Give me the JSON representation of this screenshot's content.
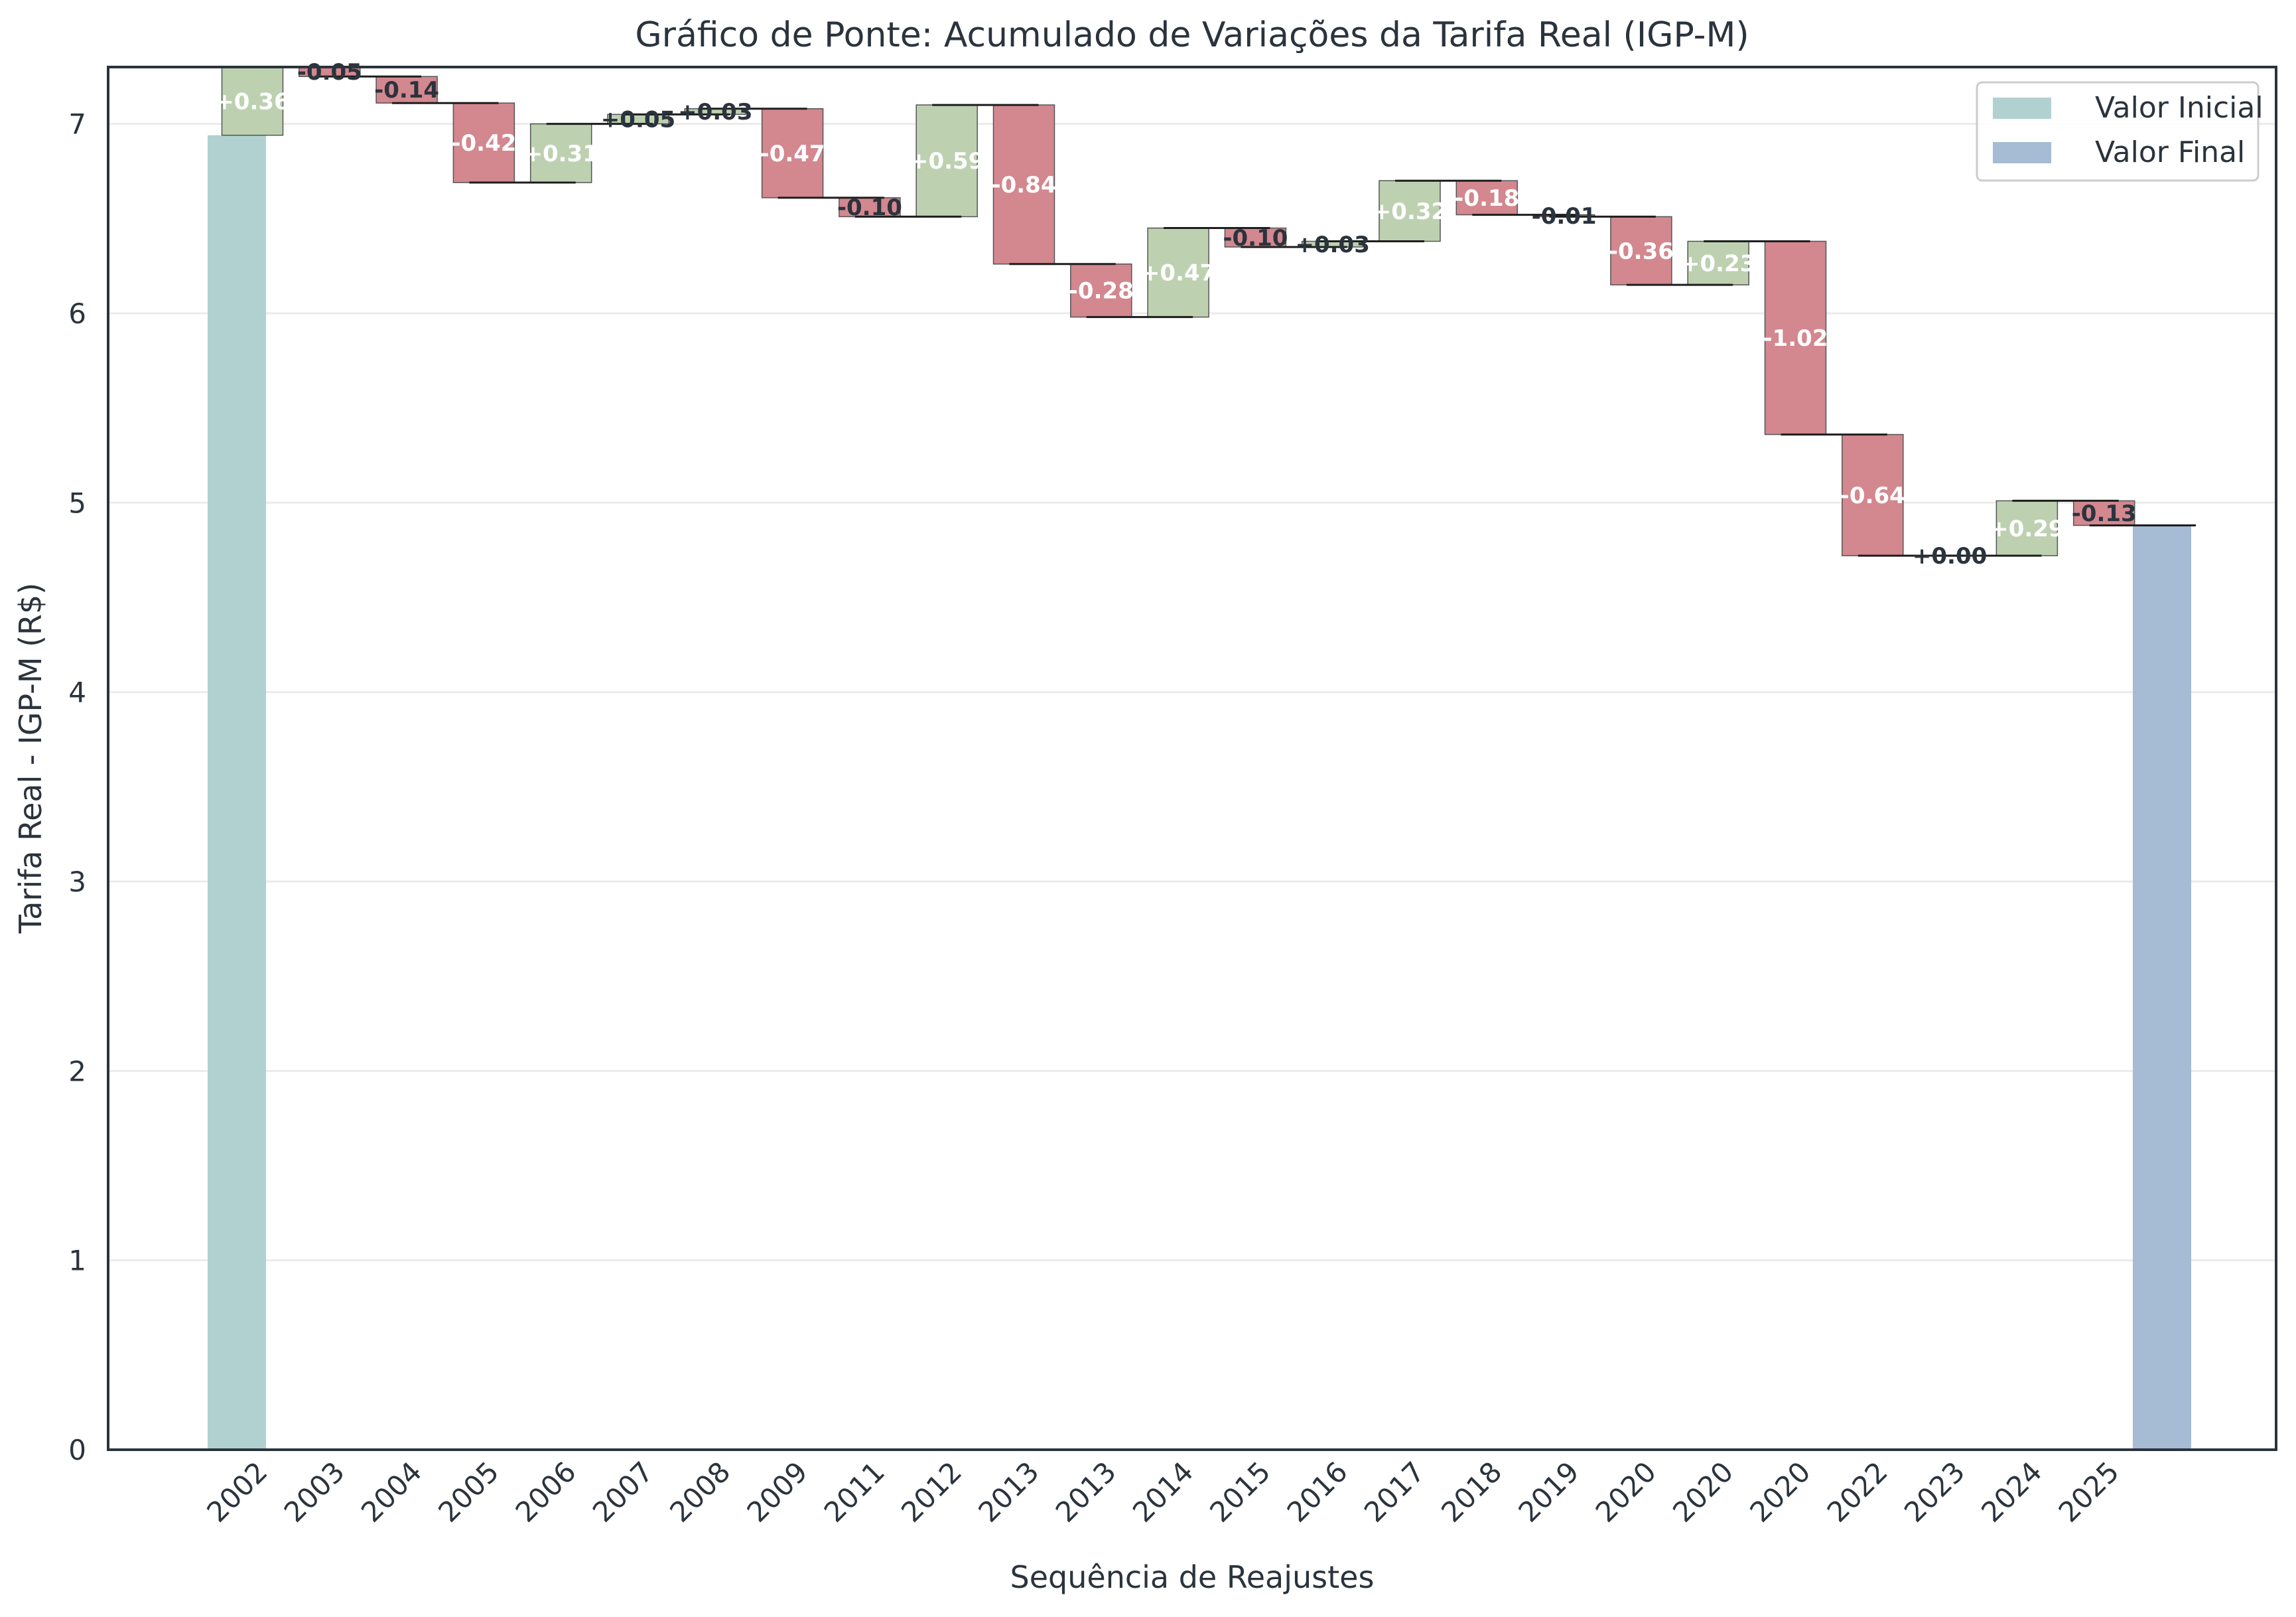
{
  "chart_data": {
    "type": "bar",
    "subtype": "waterfall",
    "title": "Gráfico de Ponte: Acumulado de Variações da Tarifa Real (IGP-M)",
    "xlabel": "Sequência de Reajustes",
    "ylabel": "Tarifa Real - IGP-M (R$)",
    "ylim": [
      0,
      7.3
    ],
    "yticks": [
      0,
      1,
      2,
      3,
      4,
      5,
      6,
      7
    ],
    "grid": "horizontal",
    "legend_position": "top-right",
    "legend": [
      {
        "label": "Valor Inicial",
        "color": "#b1d1d1"
      },
      {
        "label": "Valor Final",
        "color": "#a6bbd4"
      }
    ],
    "colors": {
      "initial": "#b1d1d1",
      "final": "#a6bbd4",
      "increase": "#bdd1b1",
      "decrease": "#d3878f",
      "connector": "#1e1e1e",
      "axis": "#2b333d",
      "grid": "#ebebeb",
      "text": "#2b333d"
    },
    "initial": {
      "x": "2002",
      "value": 6.94
    },
    "final": {
      "x": "2025",
      "value": 4.88
    },
    "categories": [
      "2002",
      "2003",
      "2004",
      "2005",
      "2006",
      "2007",
      "2008",
      "2009",
      "2011",
      "2012",
      "2013",
      "2013",
      "2014",
      "2015",
      "2016",
      "2017",
      "2018",
      "2019",
      "2020",
      "2020",
      "2020",
      "2022",
      "2023",
      "2024",
      "2025"
    ],
    "changes": [
      {
        "value": 0.36,
        "label": "+0.36"
      },
      {
        "value": -0.05,
        "label": "-0.05"
      },
      {
        "value": -0.14,
        "label": "-0.14"
      },
      {
        "value": -0.42,
        "label": "-0.42"
      },
      {
        "value": 0.31,
        "label": "+0.31"
      },
      {
        "value": 0.05,
        "label": "+0.05"
      },
      {
        "value": 0.03,
        "label": "+0.03"
      },
      {
        "value": -0.47,
        "label": "-0.47"
      },
      {
        "value": -0.1,
        "label": "-0.10"
      },
      {
        "value": 0.59,
        "label": "+0.59"
      },
      {
        "value": -0.84,
        "label": "-0.84"
      },
      {
        "value": -0.28,
        "label": "-0.28"
      },
      {
        "value": 0.47,
        "label": "+0.47"
      },
      {
        "value": -0.1,
        "label": "-0.10"
      },
      {
        "value": 0.03,
        "label": "+0.03"
      },
      {
        "value": 0.32,
        "label": "+0.32"
      },
      {
        "value": -0.18,
        "label": "-0.18"
      },
      {
        "value": -0.01,
        "label": "-0.01"
      },
      {
        "value": -0.36,
        "label": "-0.36"
      },
      {
        "value": 0.23,
        "label": "+0.23"
      },
      {
        "value": -1.02,
        "label": "-1.02"
      },
      {
        "value": -0.64,
        "label": "-0.64"
      },
      {
        "value": 0.0,
        "label": "+0.00"
      },
      {
        "value": 0.29,
        "label": "+0.29"
      },
      {
        "value": -0.13,
        "label": "-0.13"
      }
    ]
  }
}
